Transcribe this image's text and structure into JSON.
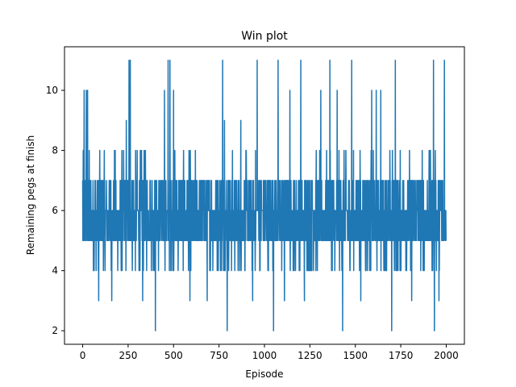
{
  "chart_data": {
    "type": "line",
    "title": "Win plot",
    "xlabel": "Episode",
    "ylabel": "Remaining pegs at finish",
    "xlim": [
      -100,
      2100
    ],
    "ylim": [
      1.55,
      11.45
    ],
    "xticks": [
      0,
      250,
      500,
      750,
      1000,
      1250,
      1500,
      1750,
      2000
    ],
    "yticks": [
      2,
      4,
      6,
      8,
      10
    ],
    "grid": false,
    "legend": "none",
    "series": [
      {
        "color": "#1f77b4",
        "episode_count": 2000,
        "typical_range": [
          4,
          7
        ],
        "extreme_values": [
          {
            "x": 8,
            "y": 10
          },
          {
            "x": 20,
            "y": 10
          },
          {
            "x": 27,
            "y": 10
          },
          {
            "x": 240,
            "y": 9
          },
          {
            "x": 255,
            "y": 11
          },
          {
            "x": 262,
            "y": 11
          },
          {
            "x": 450,
            "y": 10
          },
          {
            "x": 470,
            "y": 11
          },
          {
            "x": 480,
            "y": 11
          },
          {
            "x": 500,
            "y": 10
          },
          {
            "x": 770,
            "y": 11
          },
          {
            "x": 780,
            "y": 9
          },
          {
            "x": 870,
            "y": 9
          },
          {
            "x": 960,
            "y": 11
          },
          {
            "x": 1075,
            "y": 11
          },
          {
            "x": 1140,
            "y": 10
          },
          {
            "x": 1200,
            "y": 11
          },
          {
            "x": 1310,
            "y": 10
          },
          {
            "x": 1360,
            "y": 11
          },
          {
            "x": 1400,
            "y": 10
          },
          {
            "x": 1430,
            "y": 11
          },
          {
            "x": 1480,
            "y": 11
          },
          {
            "x": 1590,
            "y": 10
          },
          {
            "x": 1615,
            "y": 10
          },
          {
            "x": 1640,
            "y": 10
          },
          {
            "x": 1720,
            "y": 11
          },
          {
            "x": 1930,
            "y": 11
          },
          {
            "x": 1990,
            "y": 11
          },
          {
            "x": 400,
            "y": 2
          },
          {
            "x": 795,
            "y": 2
          },
          {
            "x": 1050,
            "y": 2
          },
          {
            "x": 1430,
            "y": 2
          },
          {
            "x": 1700,
            "y": 2
          },
          {
            "x": 1935,
            "y": 2
          },
          {
            "x": 88,
            "y": 3
          },
          {
            "x": 160,
            "y": 3
          },
          {
            "x": 330,
            "y": 3
          },
          {
            "x": 590,
            "y": 3
          },
          {
            "x": 685,
            "y": 3
          },
          {
            "x": 935,
            "y": 3
          },
          {
            "x": 1110,
            "y": 3
          },
          {
            "x": 1220,
            "y": 3
          },
          {
            "x": 1530,
            "y": 3
          },
          {
            "x": 1810,
            "y": 3
          },
          {
            "x": 1960,
            "y": 3
          }
        ]
      }
    ]
  }
}
